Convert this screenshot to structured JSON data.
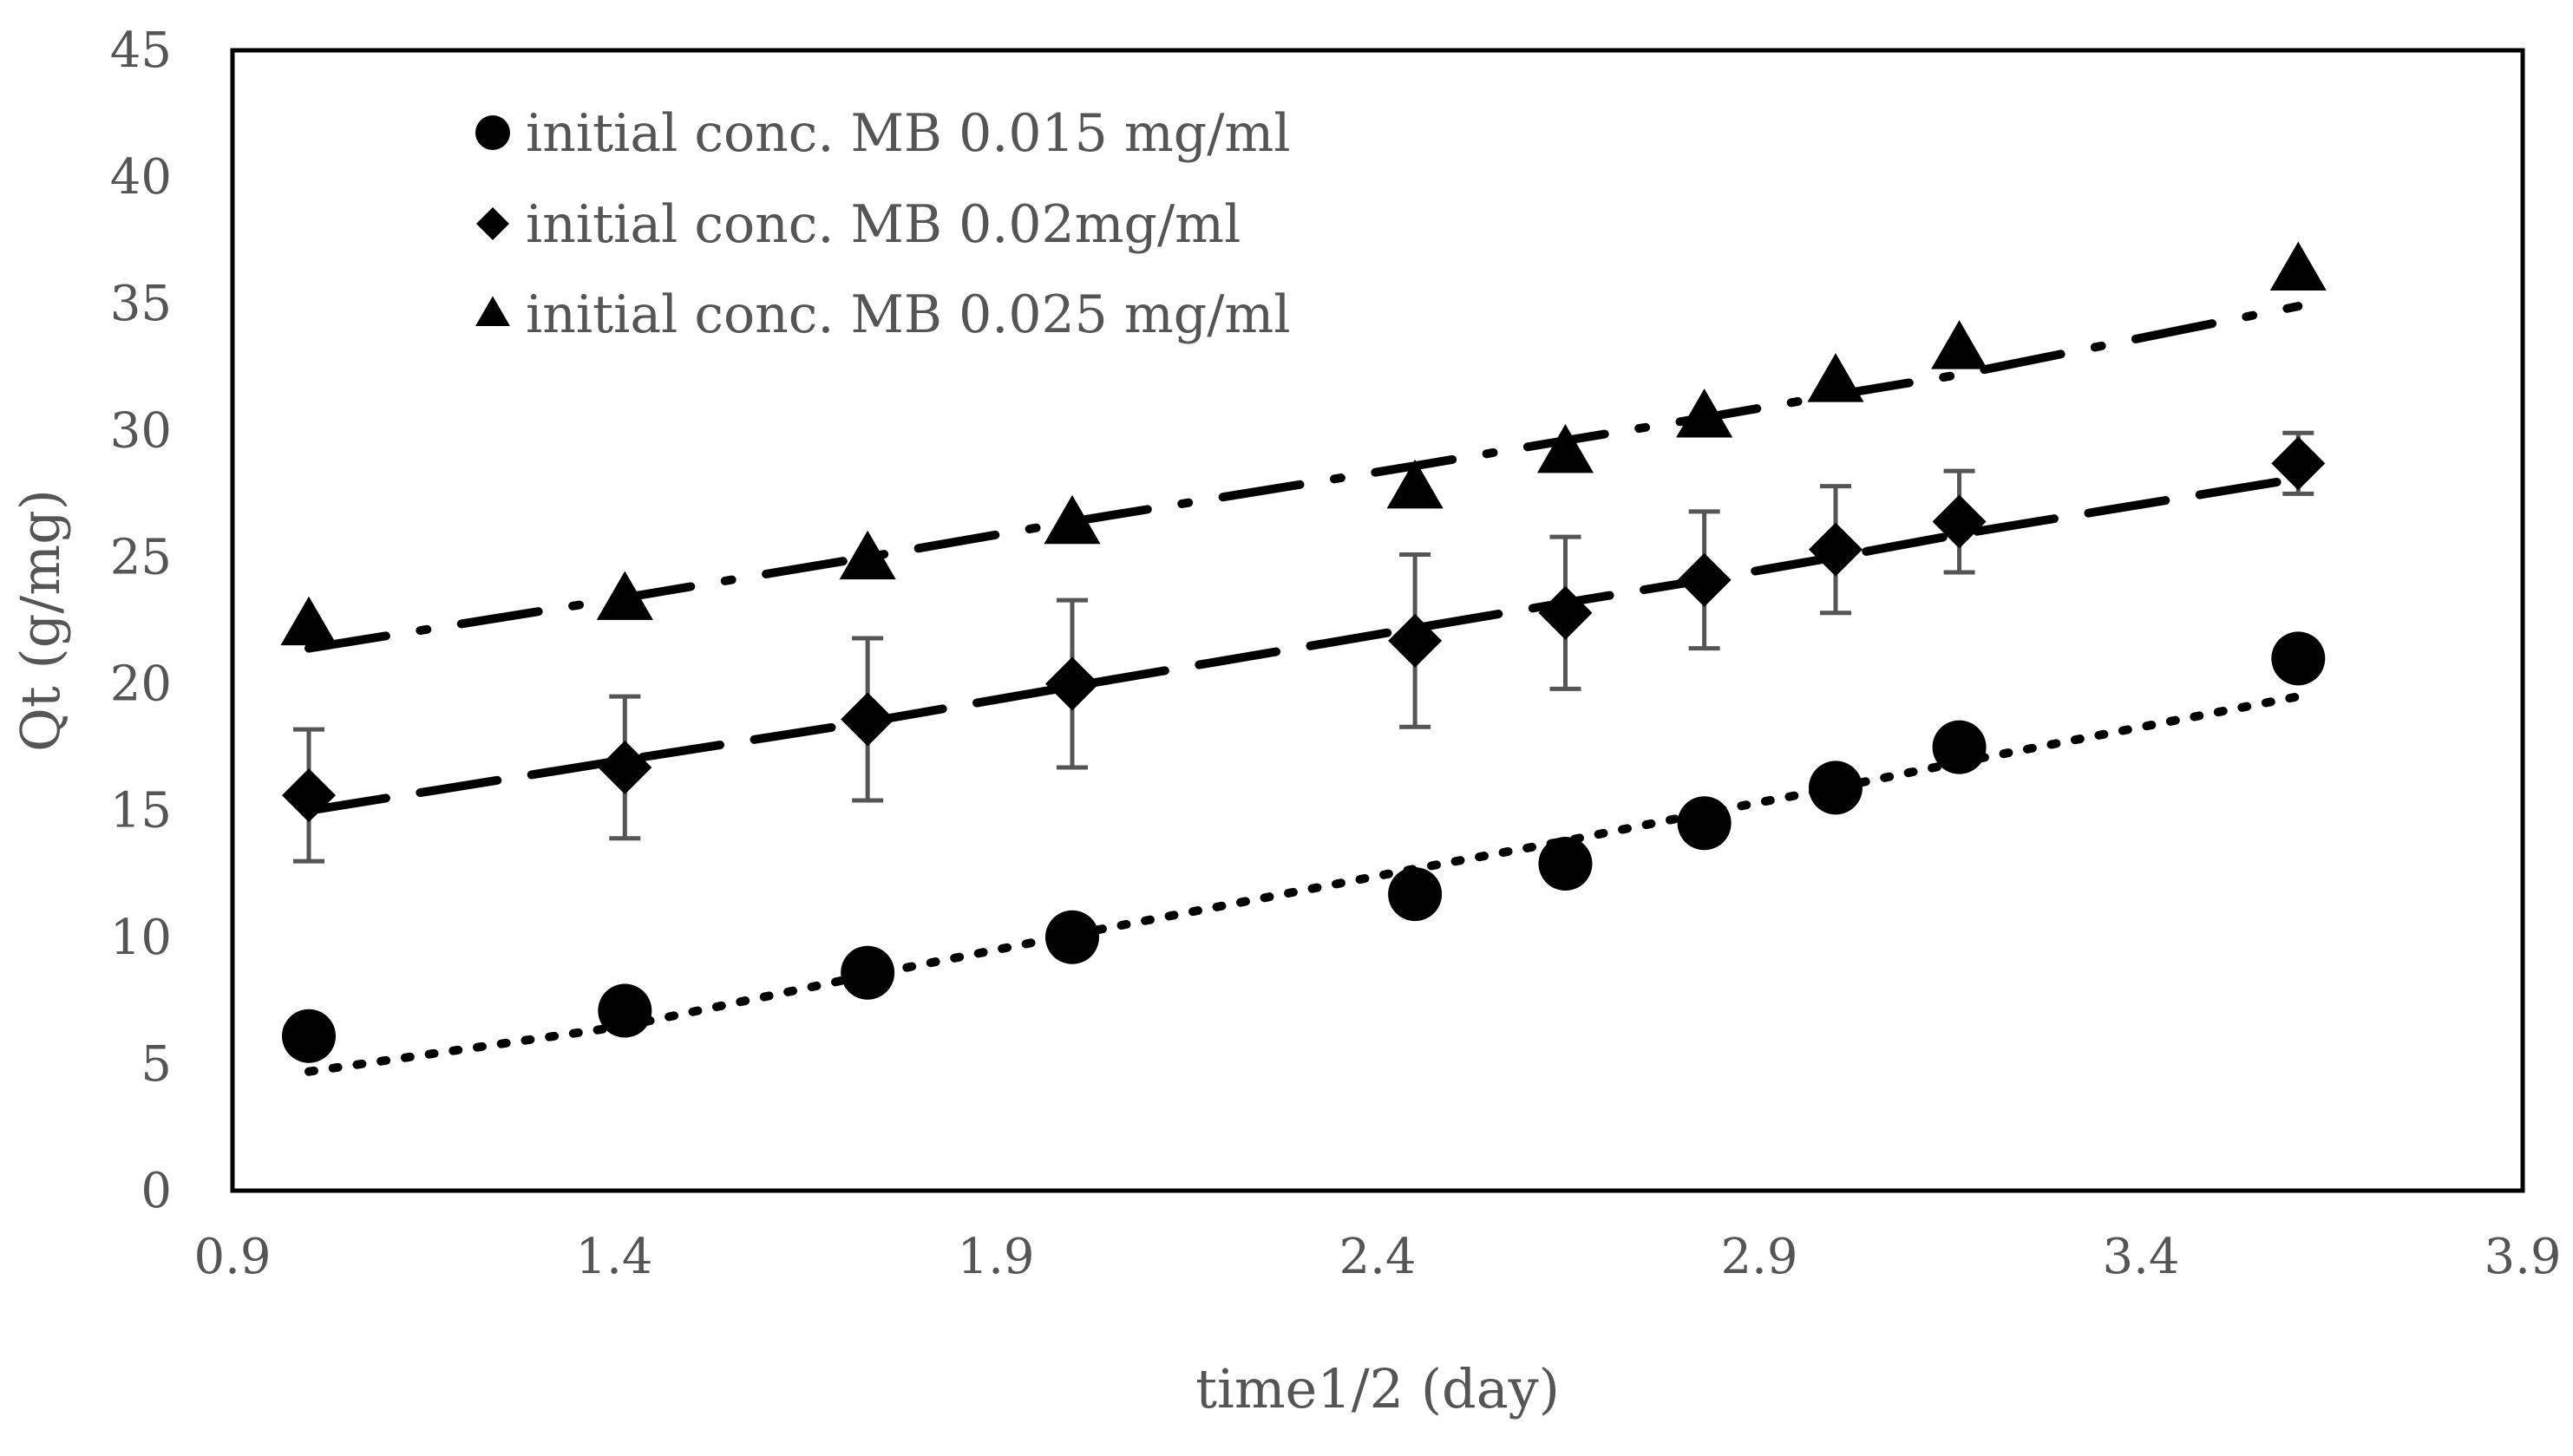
{
  "chart_data": {
    "type": "scatter",
    "title": "",
    "xlabel": "time1/2 (day)",
    "ylabel": "Qt (g/mg)",
    "xlim": [
      0.9,
      3.9
    ],
    "ylim": [
      0,
      45
    ],
    "x_ticks": [
      "0.9",
      "1.4",
      "1.9",
      "2.4",
      "2.9",
      "3.4",
      "3.9"
    ],
    "y_ticks": [
      "0",
      "5",
      "10",
      "15",
      "20",
      "25",
      "30",
      "35",
      "40",
      "45"
    ],
    "grid": false,
    "legend_position": "top-left",
    "x": [
      1.0,
      1.414,
      1.732,
      2.0,
      2.449,
      2.646,
      2.828,
      3.0,
      3.162,
      3.606
    ],
    "series": [
      {
        "name": "initial conc. MB 0.015 mg/ml",
        "marker": "circle",
        "trendline": "dotted",
        "values": [
          6.1,
          7.1,
          8.6,
          10.0,
          11.7,
          12.9,
          14.5,
          15.9,
          17.5,
          21.0
        ],
        "trend_values": [
          4.7,
          6.5,
          8.5,
          10.1,
          12.7,
          13.8,
          14.9,
          15.9,
          16.9,
          19.5
        ]
      },
      {
        "name": "initial conc. MB 0.02mg/ml",
        "marker": "diamond",
        "trendline": "long-dash",
        "values": [
          15.6,
          16.7,
          18.6,
          20.0,
          21.7,
          22.8,
          24.1,
          25.3,
          26.4,
          28.7
        ],
        "errors": [
          2.6,
          2.8,
          3.2,
          3.3,
          3.4,
          3.0,
          2.7,
          2.5,
          2.0,
          1.2
        ],
        "trend_values": [
          15.0,
          17.0,
          18.5,
          19.9,
          22.2,
          23.2,
          24.1,
          25.0,
          25.9,
          28.1
        ]
      },
      {
        "name": "initial conc. MB 0.025 mg/ml",
        "marker": "triangle",
        "trendline": "dash-dot",
        "values": [
          22.3,
          23.3,
          24.9,
          26.3,
          27.7,
          29.1,
          30.5,
          31.9,
          33.2,
          36.3
        ],
        "trend_values": [
          21.4,
          23.4,
          25.0,
          26.4,
          28.6,
          29.6,
          30.5,
          31.4,
          32.2,
          34.9
        ]
      }
    ]
  }
}
